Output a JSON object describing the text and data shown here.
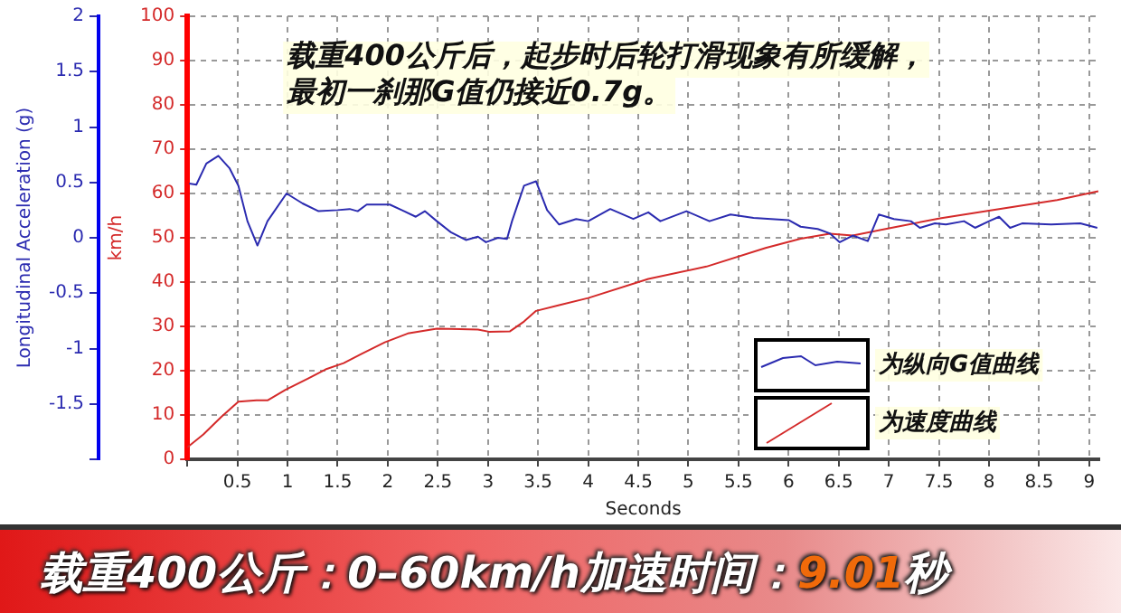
{
  "chart_data": {
    "type": "line",
    "title": "载重400公斤：0–60km/h加速时间：9.01秒",
    "xlabel": "Seconds",
    "ylabel": "Longitudinal Acceleration (g)",
    "y2label": "km/h",
    "annotations": [
      "载重400公斤后，起步时后轮打滑现象有所缓解，",
      "最初一刹那G值仍接近0.7g。"
    ],
    "xlim": [
      0,
      9.1
    ],
    "xticks": [
      {
        "value": 0,
        "label": null
      },
      0.5,
      1,
      1.5,
      2,
      2.5,
      3,
      3.5,
      4,
      4.5,
      5,
      5.5,
      6,
      6.5,
      7,
      7.5,
      8,
      8.5,
      9
    ],
    "ylim": [
      -2,
      2
    ],
    "yticks": [
      {
        "value": -2,
        "label": null
      },
      -1.5,
      -1,
      -0.5,
      0,
      0.5,
      1,
      1.5,
      2
    ],
    "y2lim": [
      0,
      100
    ],
    "y2ticks": [
      0,
      10,
      20,
      30,
      40,
      50,
      60,
      70,
      80,
      90,
      100
    ],
    "grid": true,
    "legend": "bottom right",
    "marker": "none",
    "line_style": "solid",
    "series": [
      {
        "name": "为纵向G值曲线",
        "color": "#2b2bb0",
        "x": [
          0.02,
          0.09,
          0.19,
          0.31,
          0.42,
          0.51,
          0.6,
          0.7,
          0.8,
          0.99,
          1.15,
          1.31,
          1.5,
          1.62,
          1.7,
          1.79,
          2.02,
          2.14,
          2.28,
          2.37,
          2.49,
          2.63,
          2.78,
          2.9,
          2.98,
          3.1,
          3.19,
          3.24,
          3.36,
          3.48,
          3.59,
          3.71,
          3.88,
          4.0,
          4.22,
          4.45,
          4.6,
          4.72,
          4.98,
          5.21,
          5.42,
          5.65,
          6.0,
          6.12,
          6.29,
          6.41,
          6.51,
          6.64,
          6.79,
          6.9,
          7.05,
          7.22,
          7.31,
          7.46,
          7.57,
          7.75,
          7.86,
          8.0,
          8.1,
          8.21,
          8.33,
          8.62,
          8.91,
          9.08
        ],
        "values": [
          0.49,
          0.48,
          0.67,
          0.74,
          0.63,
          0.47,
          0.15,
          -0.07,
          0.15,
          0.4,
          0.31,
          0.24,
          0.25,
          0.26,
          0.24,
          0.3,
          0.3,
          0.25,
          0.19,
          0.24,
          0.15,
          0.05,
          -0.02,
          0.01,
          -0.04,
          0.0,
          -0.01,
          0.15,
          0.47,
          0.51,
          0.25,
          0.12,
          0.17,
          0.15,
          0.26,
          0.17,
          0.23,
          0.15,
          0.24,
          0.15,
          0.21,
          0.18,
          0.16,
          0.1,
          0.08,
          0.04,
          -0.04,
          0.02,
          -0.03,
          0.21,
          0.17,
          0.15,
          0.09,
          0.13,
          0.12,
          0.15,
          0.09,
          0.15,
          0.19,
          0.09,
          0.13,
          0.12,
          0.13,
          0.09
        ]
      },
      {
        "name": "为速度曲线",
        "color": "#d42a2a",
        "axis": "y2",
        "x": [
          0,
          0.16,
          0.34,
          0.51,
          0.69,
          0.8,
          0.98,
          1.21,
          1.38,
          1.56,
          1.73,
          1.97,
          2.2,
          2.49,
          2.9,
          3.01,
          3.22,
          3.36,
          3.48,
          3.71,
          4.0,
          4.6,
          5.18,
          5.77,
          6.12,
          6.41,
          6.64,
          6.99,
          7.51,
          8.1,
          8.68,
          9.09
        ],
        "values": [
          2.7,
          5.6,
          9.6,
          13,
          13.3,
          13.3,
          15.7,
          18.3,
          20.3,
          21.7,
          23.7,
          26.4,
          28.4,
          29.5,
          29.3,
          28.8,
          28.9,
          31.1,
          33.5,
          34.8,
          36.4,
          40.7,
          43.5,
          47.7,
          49.8,
          50.9,
          50.5,
          52.1,
          54.4,
          56.5,
          58.5,
          60.5
        ]
      }
    ]
  }
}
